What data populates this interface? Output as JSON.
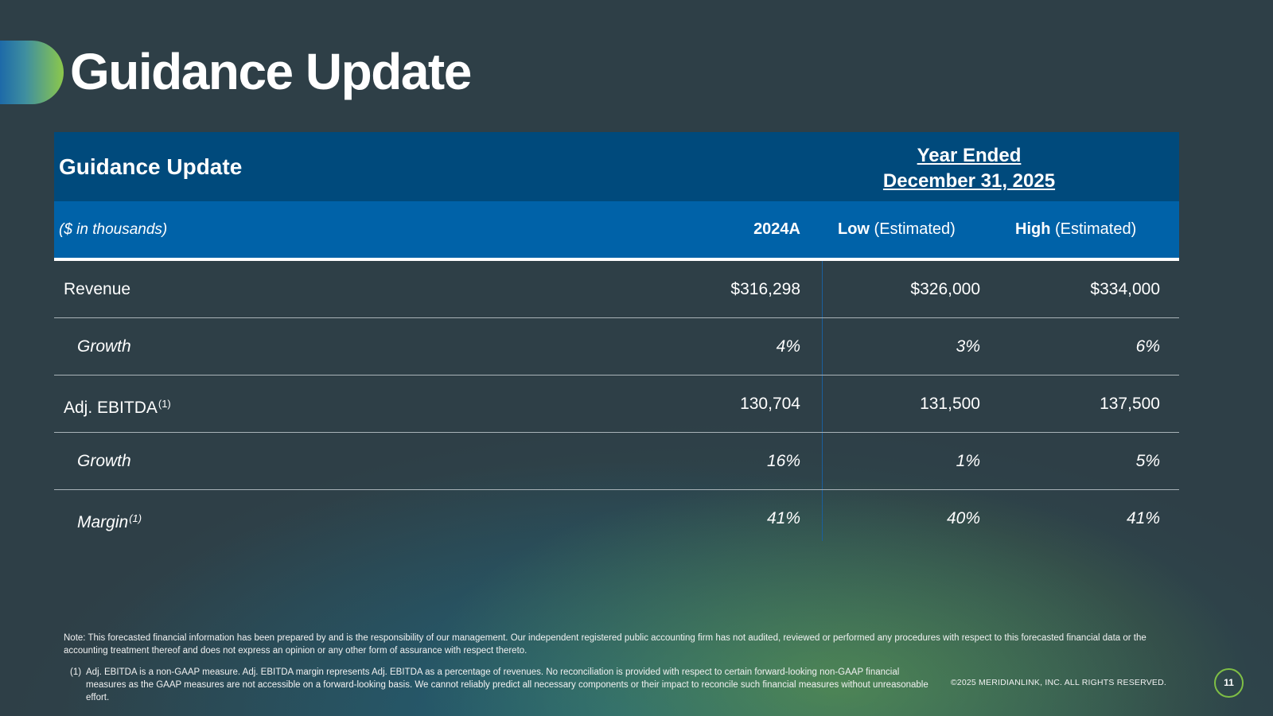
{
  "slide": {
    "title": "Guidance Update"
  },
  "table": {
    "header_title": "Guidance Update",
    "period_line1": "Year Ended",
    "period_line2": "December 31, 2025",
    "units": "($ in thousands)",
    "columns": {
      "actual": "2024A",
      "low_bold": "Low",
      "low_rest": " (Estimated)",
      "high_bold": "High",
      "high_rest": " (Estimated)"
    },
    "rows": [
      {
        "label": "Revenue",
        "sup": "",
        "actual": "$316,298",
        "low": "$326,000",
        "high": "$334,000"
      },
      {
        "label": "Growth",
        "sup": "",
        "actual": "4%",
        "low": "3%",
        "high": "6%"
      },
      {
        "label": "Adj. EBITDA",
        "sup": "(1)",
        "actual": "130,704",
        "low": "131,500",
        "high": "137,500"
      },
      {
        "label": "Growth",
        "sup": "",
        "actual": "16%",
        "low": "1%",
        "high": "5%"
      },
      {
        "label": "Margin",
        "sup": "(1)",
        "actual": "41%",
        "low": "40%",
        "high": "41%"
      }
    ]
  },
  "notes": {
    "note": "Note: This forecasted financial information has been prepared by and is the responsibility of our management. Our independent registered public accounting firm has not audited, reviewed or performed any procedures with respect to this forecasted financial data or the accounting treatment thereof and does not express an opinion or any other form of assurance with respect thereto.",
    "footnote_mark": "(1)",
    "footnote_text": "Adj. EBITDA is a non-GAAP measure. Adj. EBITDA margin represents Adj. EBITDA as a percentage of revenues. No reconciliation is provided with respect to certain forward-looking non-GAAP financial measures as the GAAP measures are not accessible on a forward-looking basis. We cannot reliably predict all necessary components or their impact to reconcile such financial measures without unreasonable effort."
  },
  "footer": {
    "copyright": "©2025 MERIDIANLINK, INC. ALL RIGHTS RESERVED.",
    "page_number": "11"
  },
  "colors": {
    "background": "#2e3f47",
    "header_dark": "#004a7c",
    "header_light": "#0062a8",
    "accent_green": "#8cc84b",
    "accent_blue": "#1d6aa8"
  }
}
